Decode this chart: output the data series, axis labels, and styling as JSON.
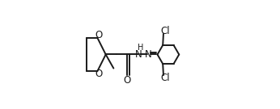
{
  "background_color": "#ffffff",
  "line_color": "#1a1a1a",
  "text_color": "#1a1a1a",
  "line_width": 1.4,
  "font_size": 8.5,
  "figsize": [
    3.46,
    1.35
  ],
  "dpi": 100,
  "xlim": [
    0.0,
    1.0
  ],
  "ylim": [
    0.05,
    0.95
  ]
}
